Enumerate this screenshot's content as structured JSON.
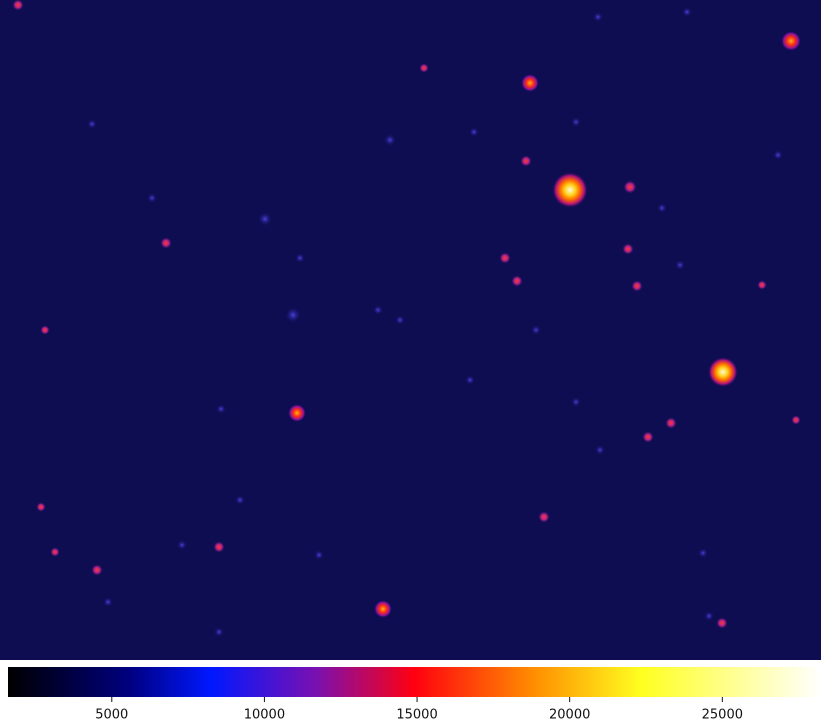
{
  "colorbar": {
    "range": [
      1600,
      28200
    ],
    "ticks": [
      5000,
      10000,
      15000,
      20000,
      25000
    ]
  }
}
